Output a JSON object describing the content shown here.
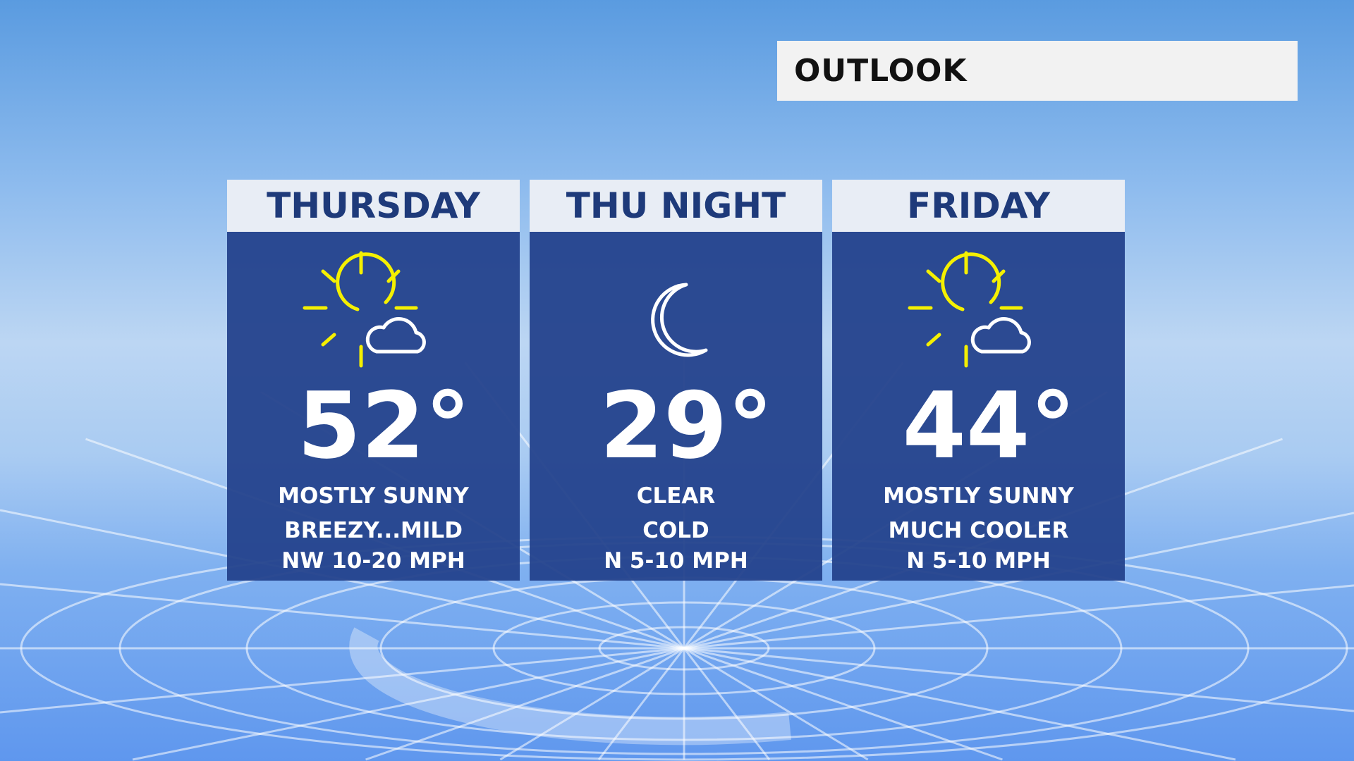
{
  "header": {
    "title": "OUTLOOK"
  },
  "colors": {
    "panel": "#24428c",
    "header": "#e8edf5",
    "sun": "#f5f000"
  },
  "panels": [
    {
      "day": "THURSDAY",
      "icon": "partly-sunny-icon",
      "temp": "52°",
      "lines": [
        "MOSTLY SUNNY",
        "BREEZY...MILD",
        "NW 10-20 MPH"
      ]
    },
    {
      "day": "THU NIGHT",
      "icon": "moon-icon",
      "temp": "29°",
      "lines": [
        "CLEAR",
        "COLD",
        "N 5-10 MPH"
      ]
    },
    {
      "day": "FRIDAY",
      "icon": "partly-sunny-icon",
      "temp": "44°",
      "lines": [
        "MOSTLY SUNNY",
        "MUCH COOLER",
        "N 5-10 MPH"
      ]
    }
  ]
}
